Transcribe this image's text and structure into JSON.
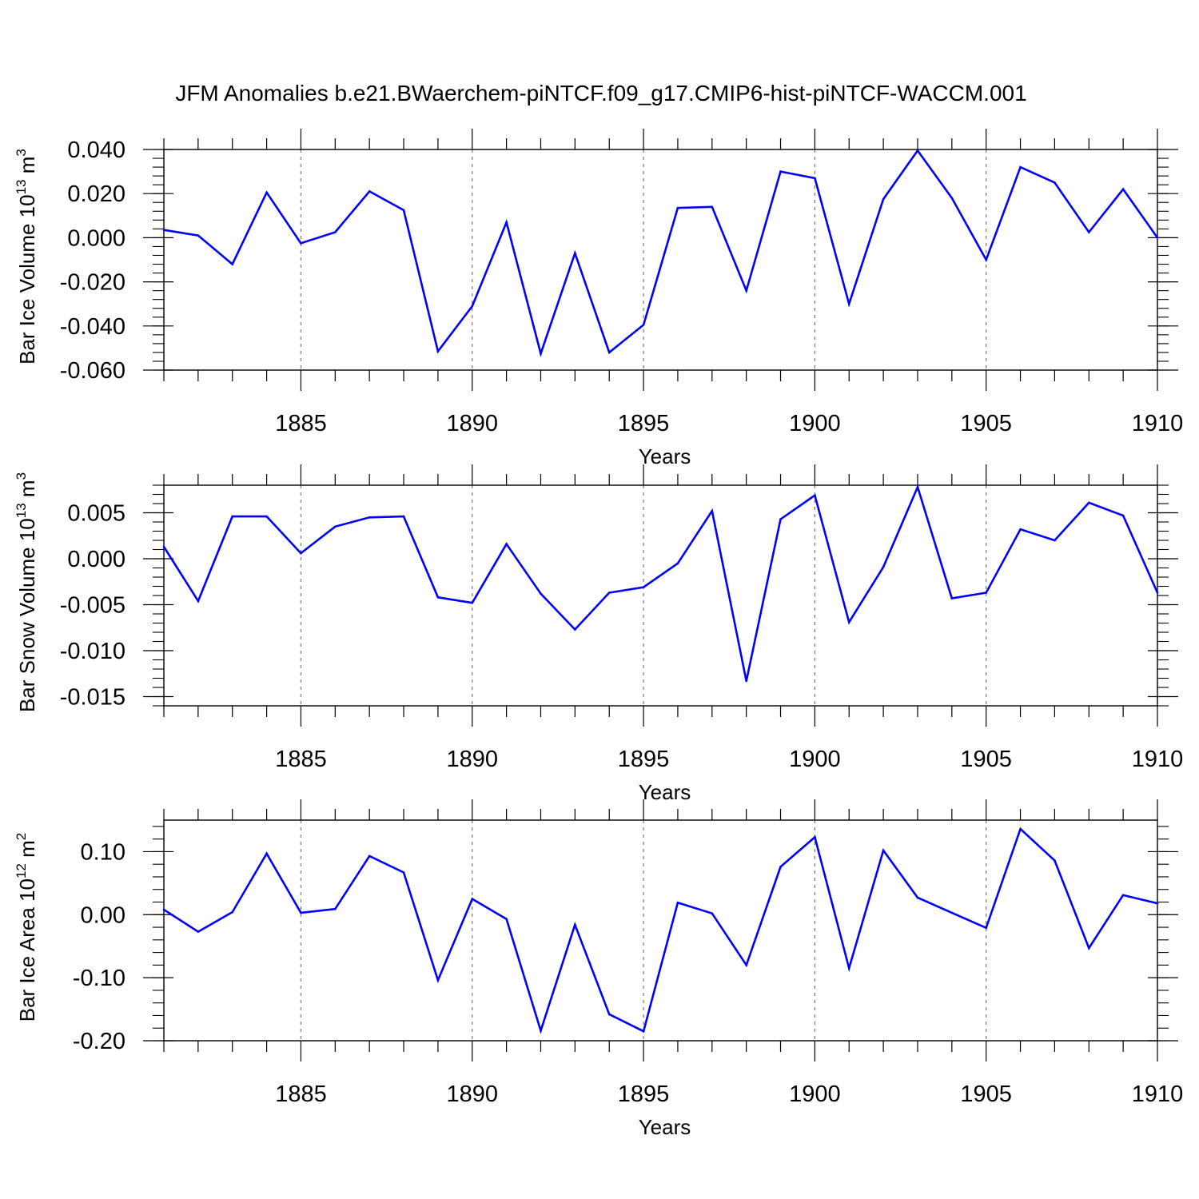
{
  "title": "JFM Anomalies b.e21.BWaerchem-piNTCF.f09_g17.CMIP6-hist-piNTCF-WACCM.001",
  "colors": {
    "line": "#0000ff",
    "axis": "#000000",
    "grid": "#777777"
  },
  "chart_data": [
    {
      "type": "line",
      "name": "ice-volume",
      "ylabel": {
        "text": "Bar Ice Volume 10",
        "sup": "13",
        "unit": " m",
        "unit_sup": "3"
      },
      "xlabel": "Years",
      "xlim": [
        1881,
        1910
      ],
      "ylim": [
        -0.06,
        0.04
      ],
      "yticks": [
        -0.06,
        -0.04,
        -0.02,
        0.0,
        0.02,
        0.04
      ],
      "ytick_labels": [
        "-0.060",
        "-0.040",
        "-0.020",
        "0.000",
        "0.020",
        "0.040"
      ],
      "xticks": [
        1885,
        1890,
        1895,
        1900,
        1905,
        1910
      ],
      "xtick_labels": [
        "1885",
        "1890",
        "1895",
        "1900",
        "1905",
        "1910"
      ],
      "x": [
        1881,
        1882,
        1883,
        1884,
        1885,
        1886,
        1887,
        1888,
        1889,
        1890,
        1891,
        1892,
        1893,
        1894,
        1895,
        1896,
        1897,
        1898,
        1899,
        1900,
        1901,
        1902,
        1903,
        1904,
        1905,
        1906,
        1907,
        1908,
        1909,
        1910
      ],
      "values": [
        0.0035,
        0.001,
        -0.012,
        0.0205,
        -0.0025,
        0.0025,
        0.021,
        0.0125,
        -0.0515,
        -0.031,
        0.007,
        -0.0525,
        -0.007,
        -0.052,
        -0.0395,
        0.0135,
        0.014,
        -0.024,
        0.03,
        0.027,
        -0.03,
        0.0175,
        0.0395,
        0.018,
        -0.01,
        0.032,
        0.025,
        0.0025,
        0.022,
        0.0
      ]
    },
    {
      "type": "line",
      "name": "snow-volume",
      "ylabel": {
        "text": "Bar Snow Volume 10",
        "sup": "13",
        "unit": " m",
        "unit_sup": "3"
      },
      "xlabel": "Years",
      "xlim": [
        1881,
        1910
      ],
      "ylim": [
        -0.016,
        0.008
      ],
      "yticks": [
        -0.015,
        -0.01,
        -0.005,
        0.0,
        0.005
      ],
      "ytick_labels": [
        "-0.015",
        "-0.010",
        "-0.005",
        "0.000",
        "0.005"
      ],
      "xticks": [
        1885,
        1890,
        1895,
        1900,
        1905,
        1910
      ],
      "xtick_labels": [
        "1885",
        "1890",
        "1895",
        "1900",
        "1905",
        "1910"
      ],
      "x": [
        1881,
        1882,
        1883,
        1884,
        1885,
        1886,
        1887,
        1888,
        1889,
        1890,
        1891,
        1892,
        1893,
        1894,
        1895,
        1896,
        1897,
        1898,
        1899,
        1900,
        1901,
        1902,
        1903,
        1904,
        1905,
        1906,
        1907,
        1908,
        1909,
        1910
      ],
      "values": [
        0.0013,
        -0.0046,
        0.0046,
        0.0046,
        0.0006,
        0.0035,
        0.0045,
        0.0046,
        -0.0042,
        -0.0048,
        0.0016,
        -0.0038,
        -0.0077,
        -0.0037,
        -0.0031,
        -0.0005,
        0.0052,
        -0.0133,
        0.0043,
        0.0069,
        -0.0069,
        -0.0009,
        0.0078,
        -0.0043,
        -0.0037,
        0.0032,
        0.002,
        0.0061,
        0.0047,
        -0.0037
      ]
    },
    {
      "type": "line",
      "name": "ice-area",
      "ylabel": {
        "text": "Bar Ice Area 10",
        "sup": "12",
        "unit": " m",
        "unit_sup": "2"
      },
      "xlabel": "Years",
      "xlim": [
        1881,
        1910
      ],
      "ylim": [
        -0.2,
        0.15
      ],
      "yticks": [
        -0.2,
        -0.1,
        0.0,
        0.1
      ],
      "ytick_labels": [
        "-0.20",
        "-0.10",
        "0.00",
        "0.10"
      ],
      "xticks": [
        1885,
        1890,
        1895,
        1900,
        1905,
        1910
      ],
      "xtick_labels": [
        "1885",
        "1890",
        "1895",
        "1900",
        "1905",
        "1910"
      ],
      "x": [
        1881,
        1882,
        1883,
        1884,
        1885,
        1886,
        1887,
        1888,
        1889,
        1890,
        1891,
        1892,
        1893,
        1894,
        1895,
        1896,
        1897,
        1898,
        1899,
        1900,
        1901,
        1902,
        1903,
        1904,
        1905,
        1906,
        1907,
        1908,
        1909,
        1910
      ],
      "values": [
        0.008,
        -0.027,
        0.004,
        0.097,
        0.003,
        0.009,
        0.093,
        0.067,
        -0.104,
        0.025,
        -0.007,
        -0.184,
        -0.016,
        -0.158,
        -0.185,
        0.019,
        0.002,
        -0.08,
        0.076,
        0.123,
        -0.085,
        0.102,
        0.027,
        0.003,
        -0.021,
        0.136,
        0.086,
        -0.053,
        0.031,
        0.018
      ]
    }
  ]
}
